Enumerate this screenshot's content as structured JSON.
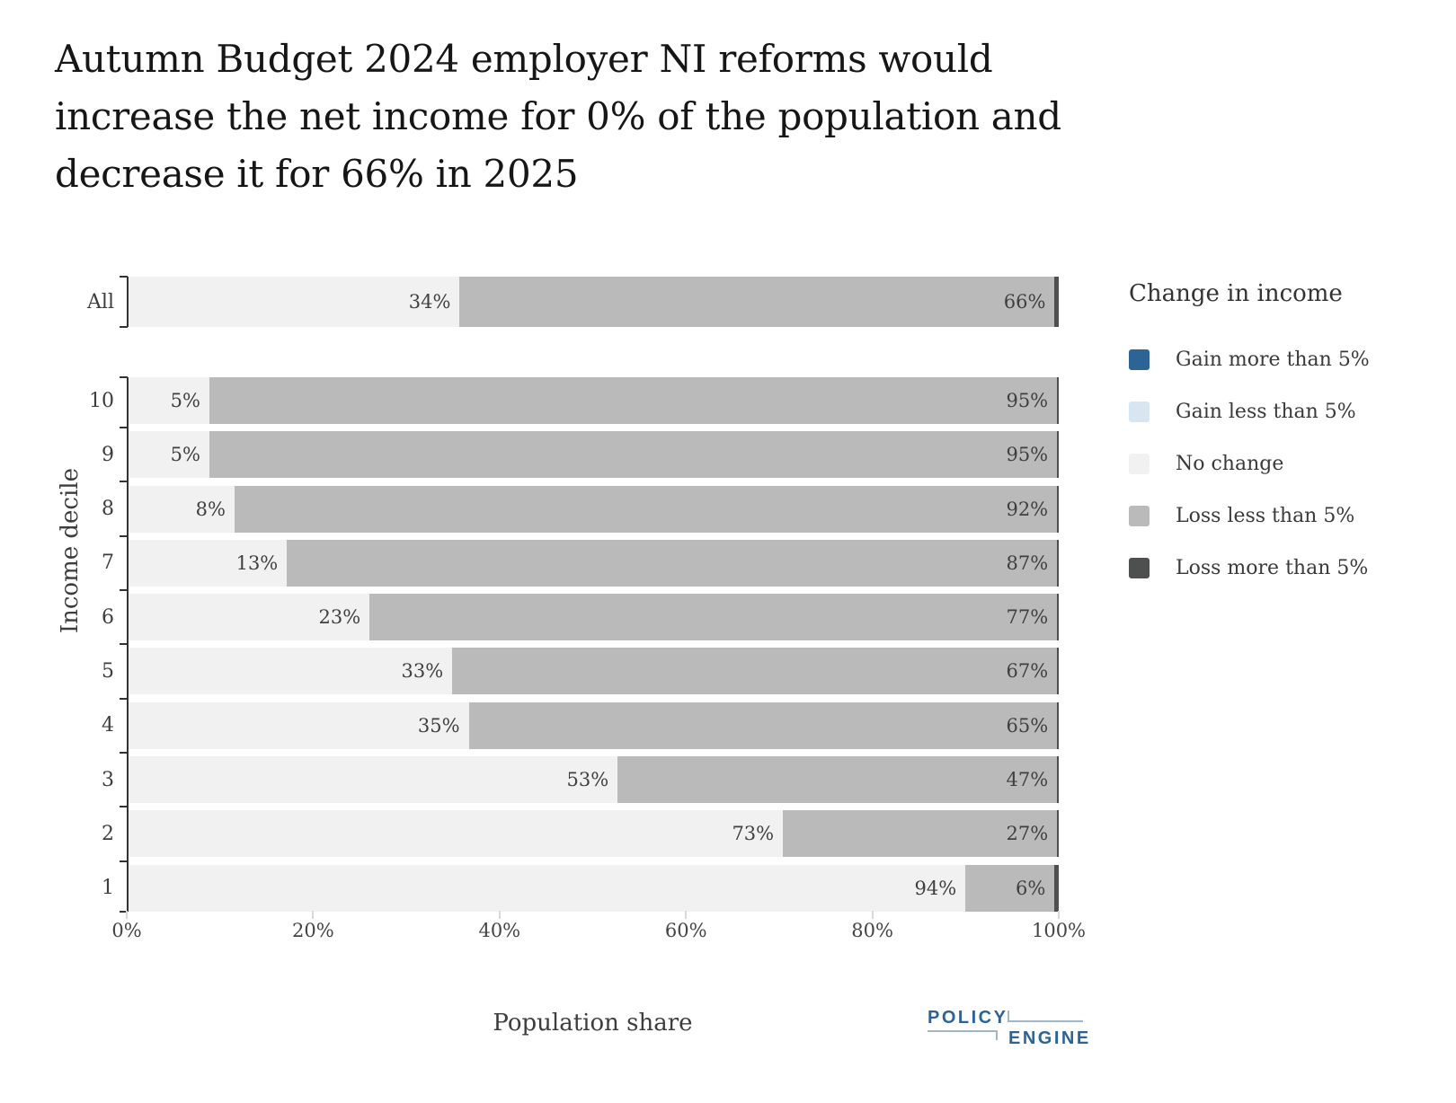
{
  "title": {
    "text": "Autumn Budget 2024 employer NI reforms would increase the net income for 0% of the population and decrease it for 66% in 2025",
    "lines": [
      "Autumn Budget 2024 employer NI reforms would",
      "increase the net income for 0% of the population and",
      "decrease it for 66% in 2025"
    ]
  },
  "chart_data": {
    "type": "bar",
    "orientation": "horizontal",
    "stacked": true,
    "title": "Autumn Budget 2024 employer NI reforms would increase the net income for 0% of the population and decrease it for 66% in 2025",
    "xlabel": "Population share",
    "ylabel": "Income decile",
    "xlim": [
      0,
      100
    ],
    "x_tick_labels": [
      "0%",
      "20%",
      "40%",
      "60%",
      "80%",
      "100%"
    ],
    "grid": false,
    "legend_title": "Change in income",
    "legend_position": "right",
    "categories": [
      "All",
      "10",
      "9",
      "8",
      "7",
      "6",
      "5",
      "4",
      "3",
      "2",
      "1"
    ],
    "series": [
      {
        "key": "gain-more-than-5",
        "name": "Gain more than 5%",
        "color": "#2C6496",
        "values": [
          0,
          0,
          0,
          0,
          0,
          0,
          0,
          0,
          0,
          0,
          0
        ],
        "value_labels": null
      },
      {
        "key": "gain-less-than-5",
        "name": "Gain less than 5%",
        "color": "#D8E6F2",
        "values": [
          0,
          0,
          0,
          0,
          0,
          0,
          0,
          0,
          0,
          0,
          0
        ],
        "value_labels": null
      },
      {
        "key": "no-change",
        "name": "No change",
        "color": "#F0F1F0",
        "values": [
          34,
          5,
          5,
          8,
          13,
          23,
          33,
          35,
          53,
          73,
          94
        ],
        "value_labels": [
          "34%",
          "5%",
          "5%",
          "8%",
          "13%",
          "23%",
          "33%",
          "35%",
          "53%",
          "73%",
          "94%"
        ]
      },
      {
        "key": "loss-less-than-5",
        "name": "Loss less than 5%",
        "color": "#B9BAB9",
        "values": [
          66,
          95,
          95,
          92,
          87,
          77,
          67,
          65,
          47,
          27,
          6
        ],
        "value_labels": [
          "66%",
          "95%",
          "95%",
          "92%",
          "87%",
          "77%",
          "67%",
          "65%",
          "47%",
          "27%",
          "6%"
        ]
      },
      {
        "key": "loss-more-than-5",
        "name": "Loss more than 5%",
        "color": "#4E504F",
        "values": [
          0.5,
          0.2,
          0.2,
          0.2,
          0.2,
          0.2,
          0.2,
          0.2,
          0.2,
          0.2,
          0.5
        ],
        "value_labels": null
      }
    ]
  },
  "logo": {
    "line1": "POLICY",
    "line2": "ENGINE",
    "text_color": "#2C6496",
    "line_color": "#9FB6CB"
  },
  "colors": {
    "axis_line": "#333333",
    "axis_text": "#3d3d3d",
    "title_text": "#161616"
  }
}
